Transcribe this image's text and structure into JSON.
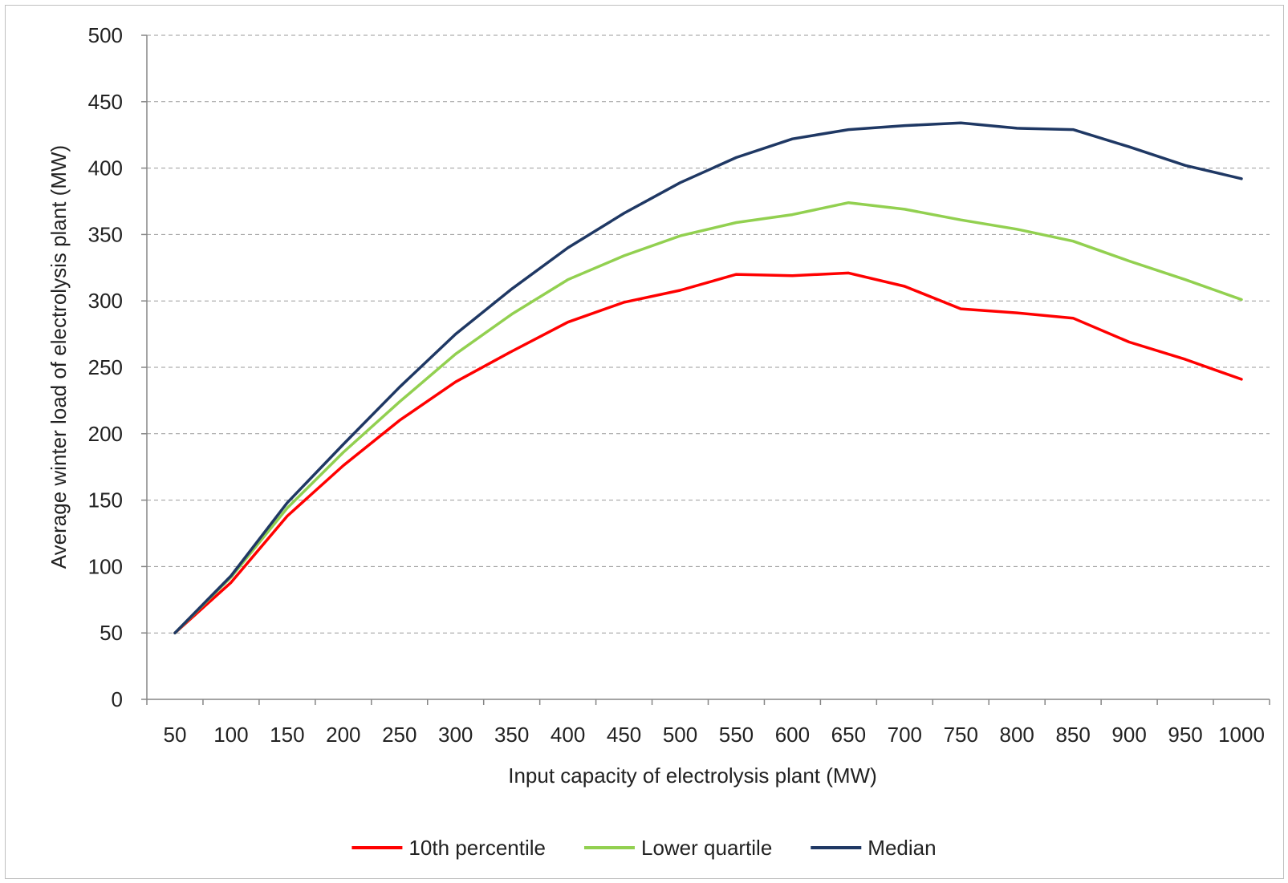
{
  "chart_data": {
    "type": "line",
    "title": "",
    "xlabel": "Input capacity of electrolysis plant (MW)",
    "ylabel": "Average winter load of electrolysis plant (MW)",
    "categories": [
      "50",
      "100",
      "150",
      "200",
      "250",
      "300",
      "350",
      "400",
      "450",
      "500",
      "550",
      "600",
      "650",
      "700",
      "750",
      "800",
      "850",
      "900",
      "950",
      "1000"
    ],
    "ylim": [
      0,
      500
    ],
    "yticks": [
      "0",
      "50",
      "100",
      "150",
      "200",
      "250",
      "300",
      "350",
      "400",
      "450",
      "500"
    ],
    "grid": true,
    "legend_position": "bottom",
    "series": [
      {
        "name": "10th percentile",
        "color": "#ff0000",
        "values": [
          50,
          88,
          138,
          176,
          210,
          239,
          262,
          284,
          299,
          308,
          320,
          319,
          321,
          311,
          294,
          291,
          287,
          269,
          256,
          241
        ]
      },
      {
        "name": "Lower quartile",
        "color": "#92d050",
        "values": [
          50,
          92,
          144,
          186,
          224,
          260,
          290,
          316,
          334,
          349,
          359,
          365,
          374,
          369,
          361,
          354,
          345,
          330,
          316,
          301
        ]
      },
      {
        "name": "Median",
        "color": "#1f3864",
        "values": [
          50,
          93,
          148,
          192,
          235,
          275,
          309,
          340,
          366,
          389,
          408,
          422,
          429,
          432,
          434,
          430,
          429,
          416,
          402,
          392
        ]
      }
    ]
  }
}
